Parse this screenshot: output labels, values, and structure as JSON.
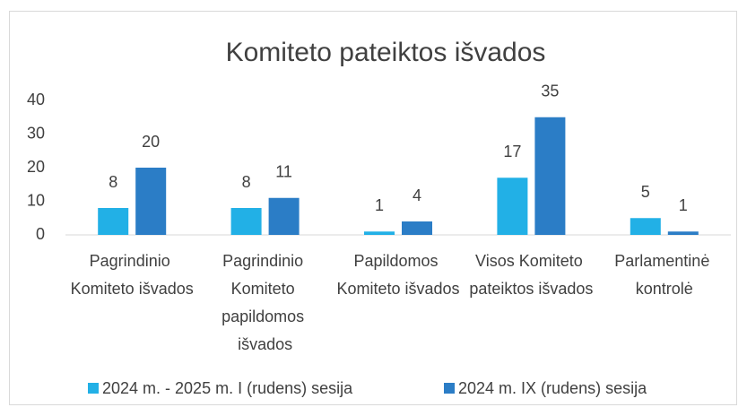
{
  "chart_data": {
    "type": "bar",
    "title": "Komiteto pateiktos išvados",
    "categories": [
      "Pagrindinio Komiteto išvados",
      "Pagrindinio Komiteto papildomos išvados",
      "Papildomos Komiteto išvados",
      "Visos Komiteto pateiktos išvados",
      "Parlamentinė kontrolė"
    ],
    "series": [
      {
        "name": "2024 m. - 2025 m. I (rudens) sesija",
        "color": "#22b0e6",
        "values": [
          8,
          8,
          1,
          17,
          5
        ]
      },
      {
        "name": "2024 m. IX (rudens) sesija",
        "color": "#2b7dc6",
        "values": [
          20,
          11,
          4,
          35,
          1
        ]
      }
    ],
    "ylim": [
      0,
      40
    ],
    "yticks": [
      0,
      10,
      20,
      30,
      40
    ],
    "grid": false,
    "legend": "bottom"
  }
}
